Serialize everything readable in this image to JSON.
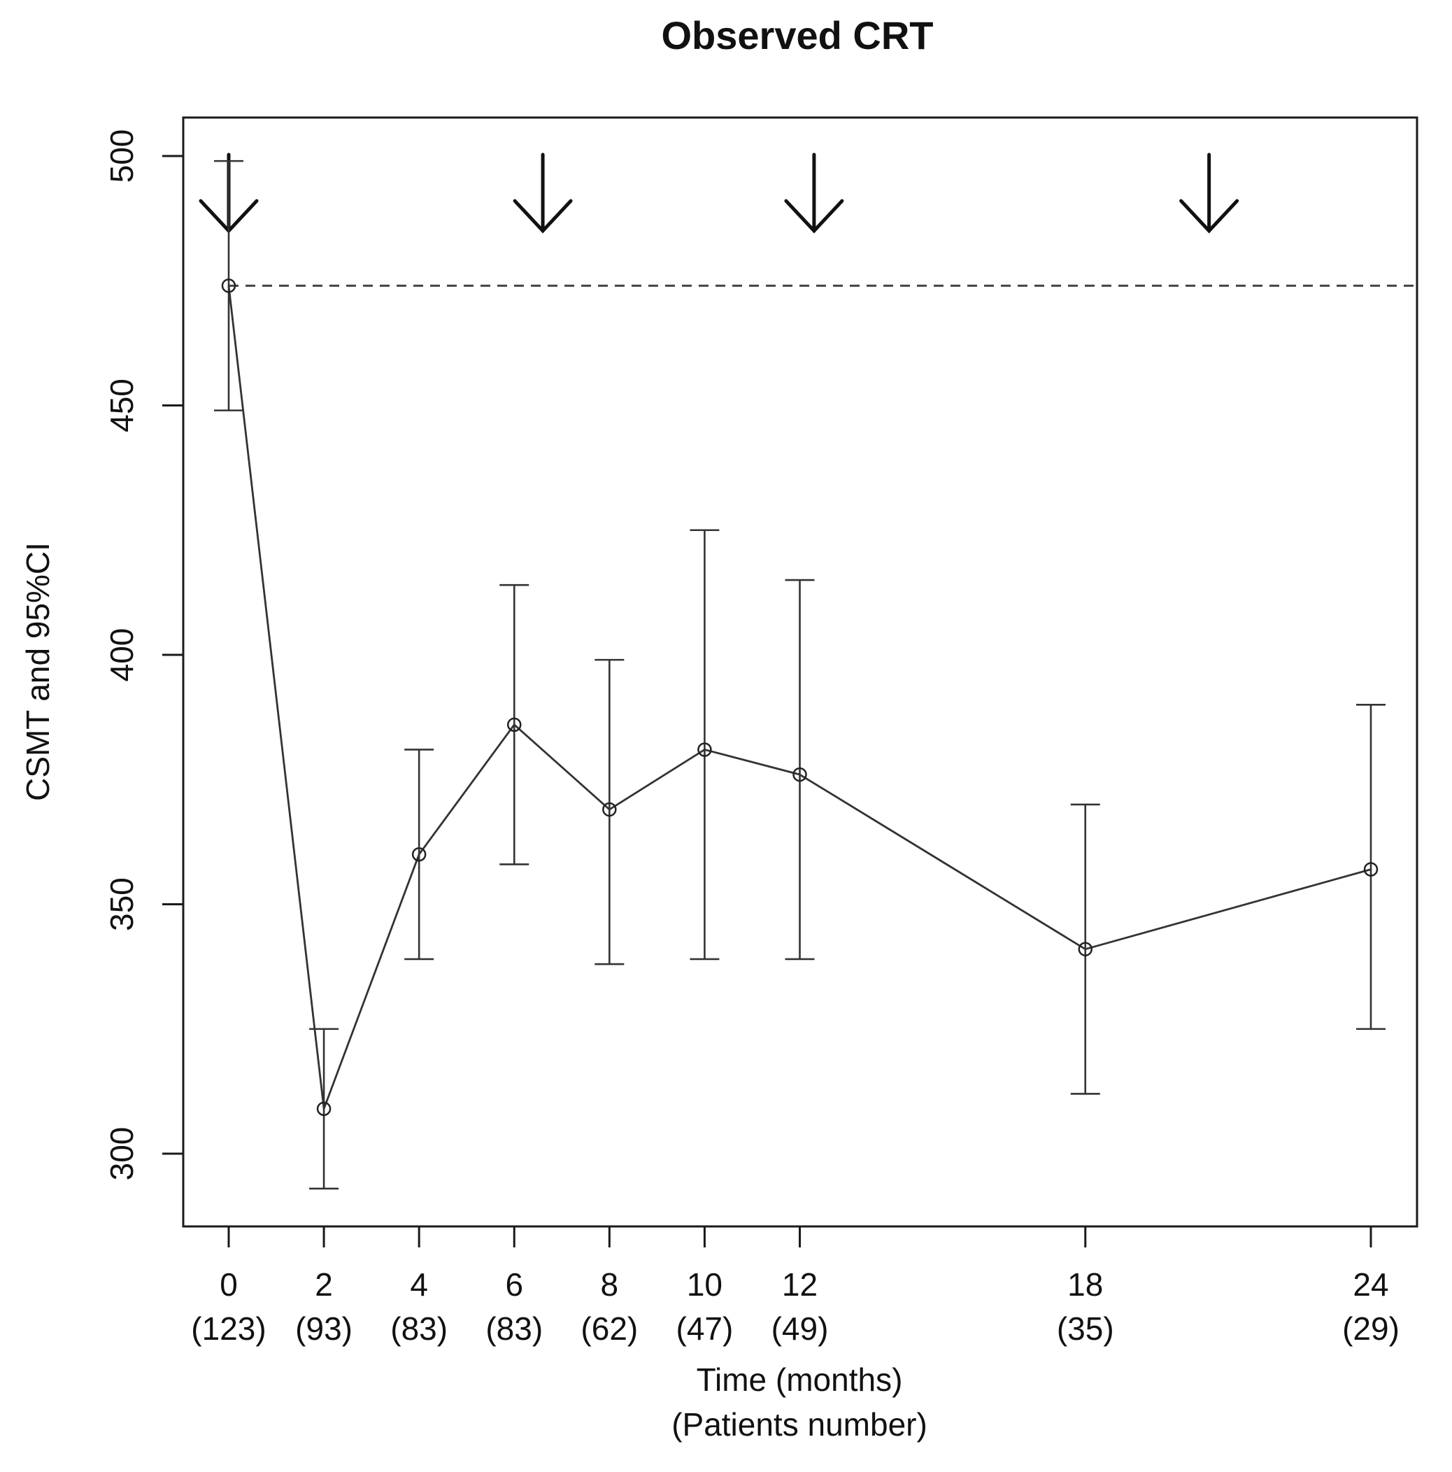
{
  "chart_data": {
    "type": "line",
    "title": "Observed CRT",
    "xlabel": "Time (months)",
    "xlabel_secondary": "(Patients number)",
    "ylabel": "CSMT  and 95%CI",
    "x": [
      0,
      2,
      4,
      6,
      8,
      10,
      12,
      18,
      24
    ],
    "x_tick_labels": [
      "0",
      "2",
      "4",
      "6",
      "8",
      "10",
      "12",
      "18",
      "24"
    ],
    "patients": [
      "(123)",
      "(93)",
      "(83)",
      "(83)",
      "(62)",
      "(47)",
      "(49)",
      "(35)",
      "(29)"
    ],
    "series": [
      {
        "values": [
          474,
          309,
          360,
          386,
          369,
          381,
          376,
          341,
          357
        ],
        "ci_lower": [
          449,
          293,
          339,
          358,
          338,
          339,
          339,
          312,
          325
        ],
        "ci_upper": [
          499,
          325,
          381,
          414,
          399,
          425,
          415,
          370,
          390
        ]
      }
    ],
    "reference_line": {
      "y": 474,
      "style": "dashed"
    },
    "treatment_arrows_x": [
      0,
      6.6,
      12.3,
      20.6
    ],
    "y_ticks": [
      300,
      350,
      400,
      450,
      500
    ],
    "xlim": [
      -1,
      25
    ],
    "ylim": [
      285,
      508
    ],
    "grid": false,
    "legend": "none"
  }
}
